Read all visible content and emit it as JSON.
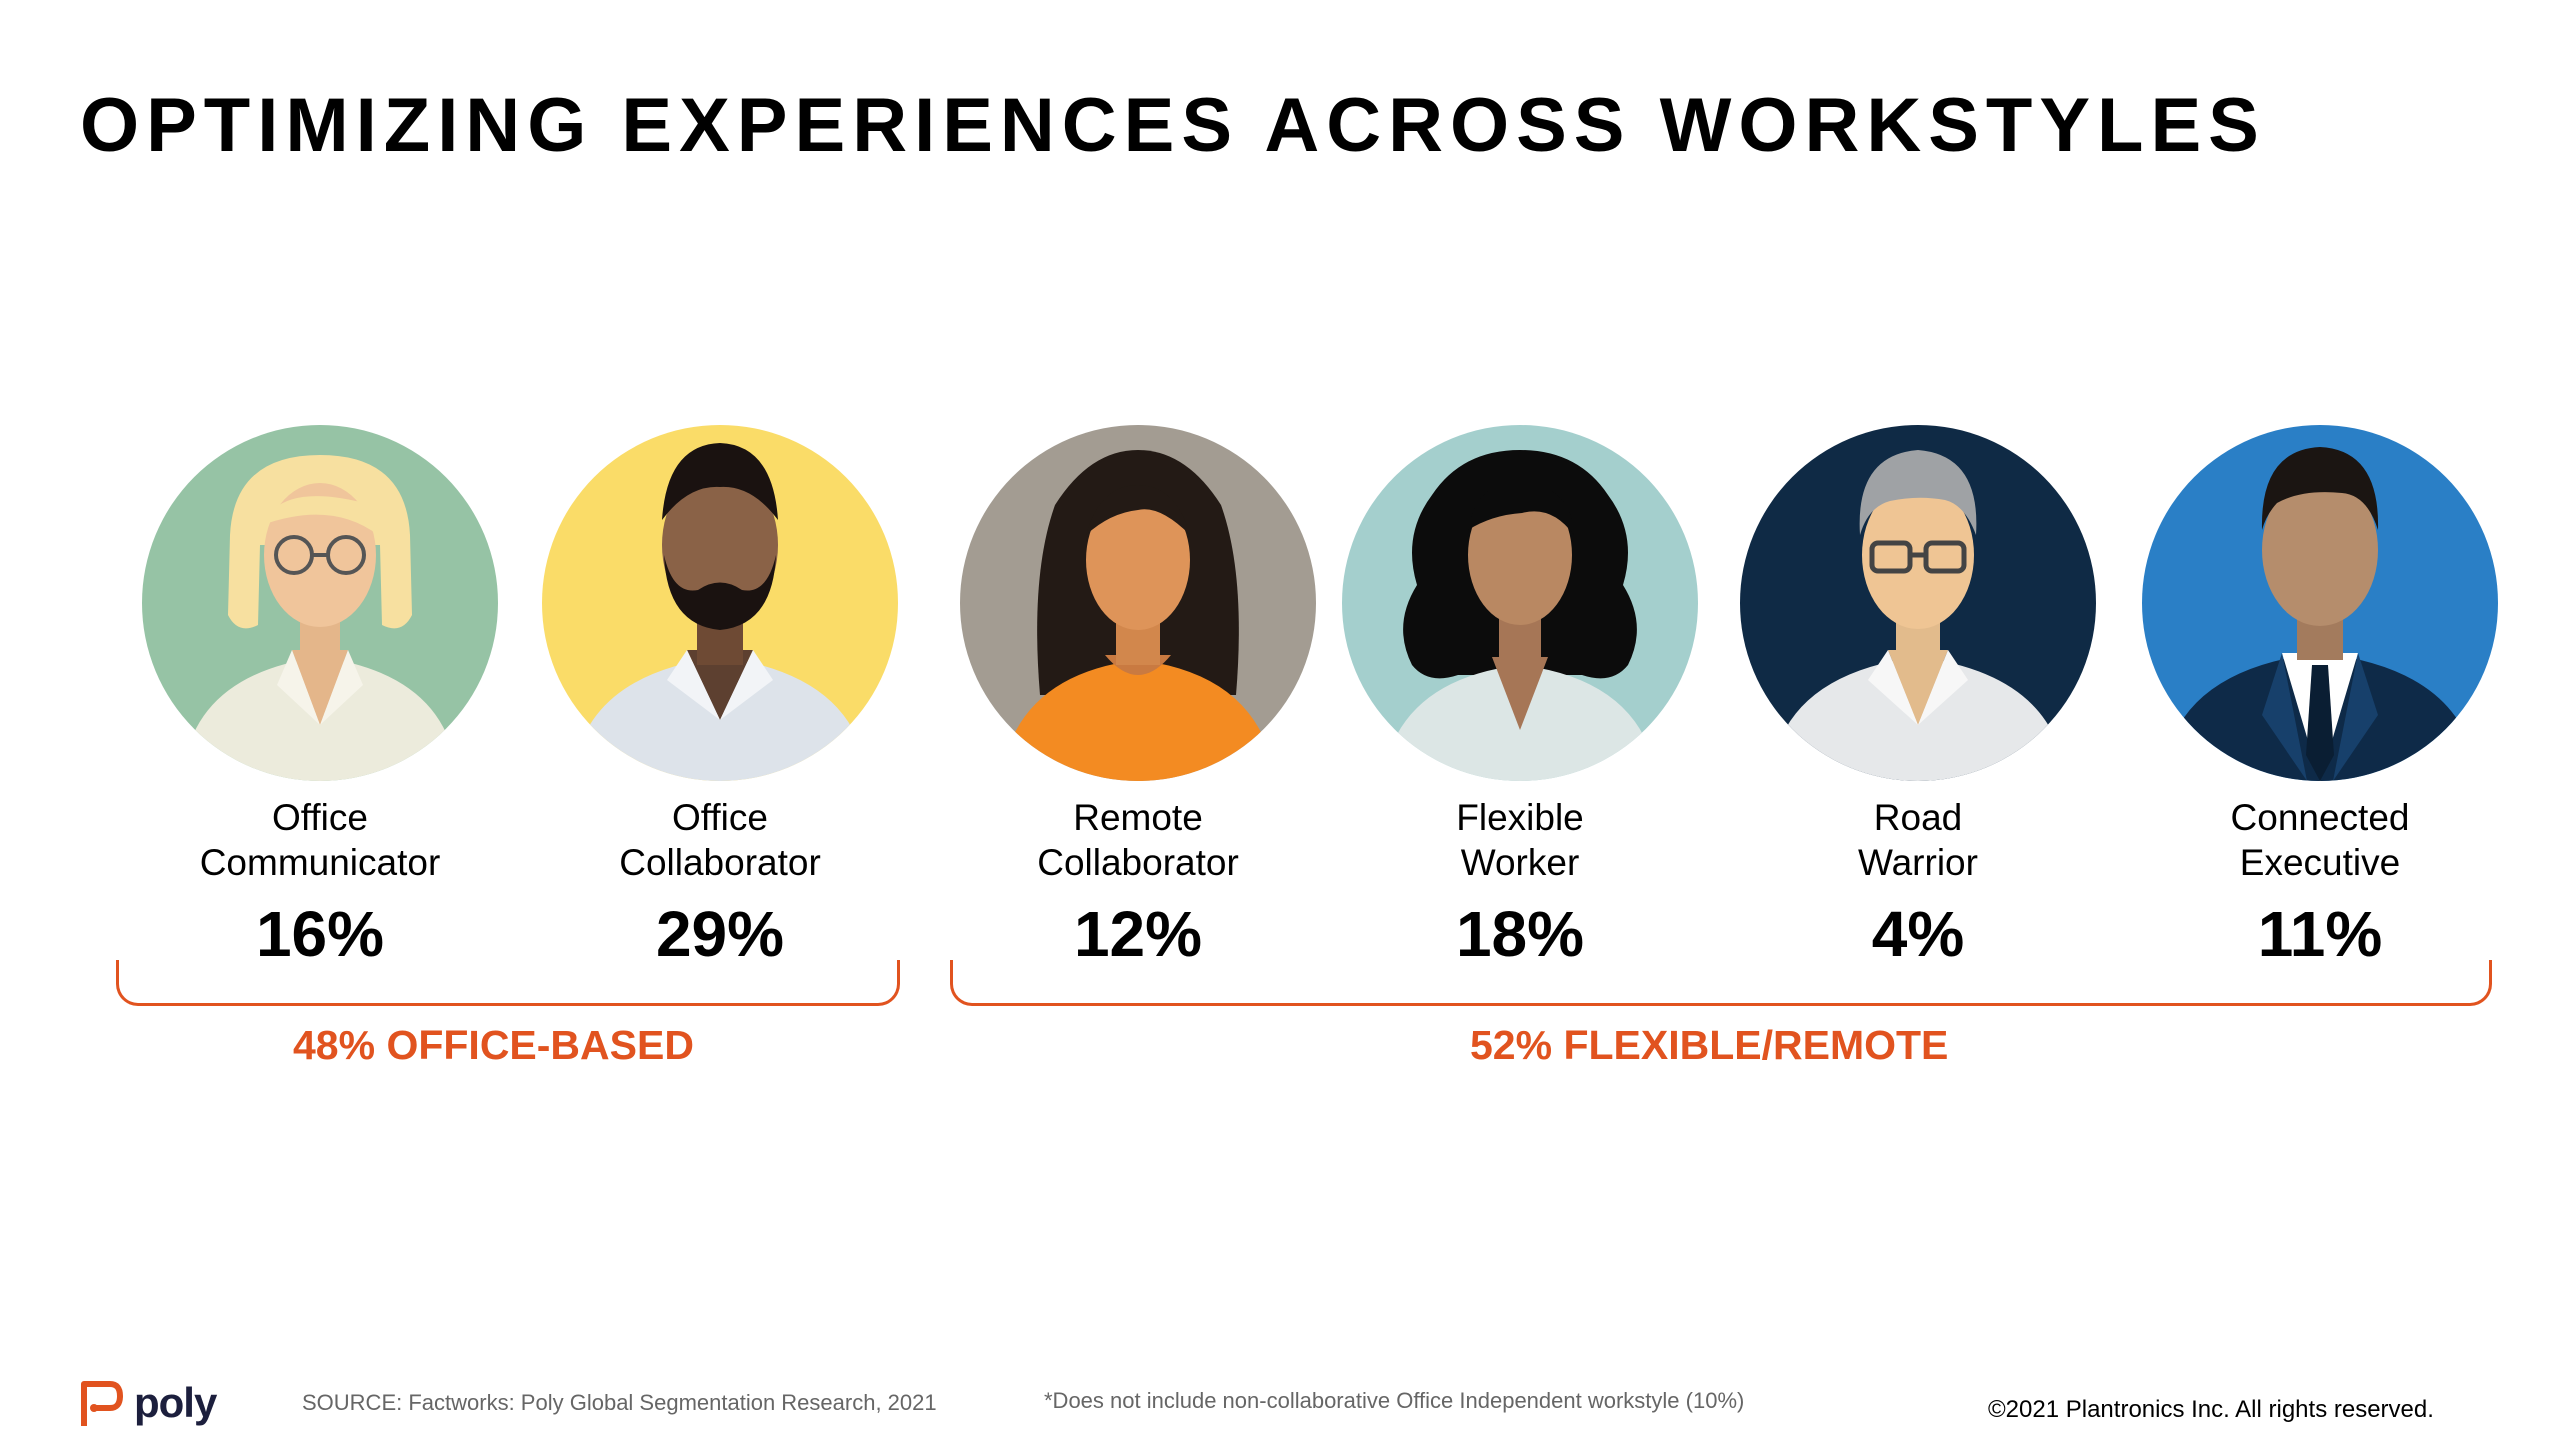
{
  "title": "OPTIMIZING EXPERIENCES ACROSS WORKSTYLES",
  "personas": [
    {
      "label_line1": "Office",
      "label_line2": "Communicator",
      "percent": "16%",
      "bg_color": "#96c3a5"
    },
    {
      "label_line1": "Office",
      "label_line2": "Collaborator",
      "percent": "29%",
      "bg_color": "#fadc68"
    },
    {
      "label_line1": "Remote",
      "label_line2": "Collaborator",
      "percent": "12%",
      "bg_color": "#a39c92"
    },
    {
      "label_line1": "Flexible",
      "label_line2": "Worker",
      "percent": "18%",
      "bg_color": "#a4cfcd"
    },
    {
      "label_line1": "Road",
      "label_line2": "Warrior",
      "percent": "4%",
      "bg_color": "#0f2a45"
    },
    {
      "label_line1": "Connected",
      "label_line2": "Executive",
      "percent": "11%",
      "bg_color": "#2a7fc6"
    }
  ],
  "groups": {
    "office_based": "48% OFFICE-BASED",
    "flexible_remote": "52% FLEXIBLE/REMOTE"
  },
  "footer": {
    "logo_text": "poly",
    "source": "SOURCE: Factworks: Poly Global Segmentation Research, 2021",
    "note": "*Does not include non-collaborative Office Independent workstyle (10%)",
    "copyright": "©2021 Plantronics Inc. All rights reserved."
  },
  "colors": {
    "accent": "#e1531f",
    "logo_dark": "#1c1f3d"
  }
}
